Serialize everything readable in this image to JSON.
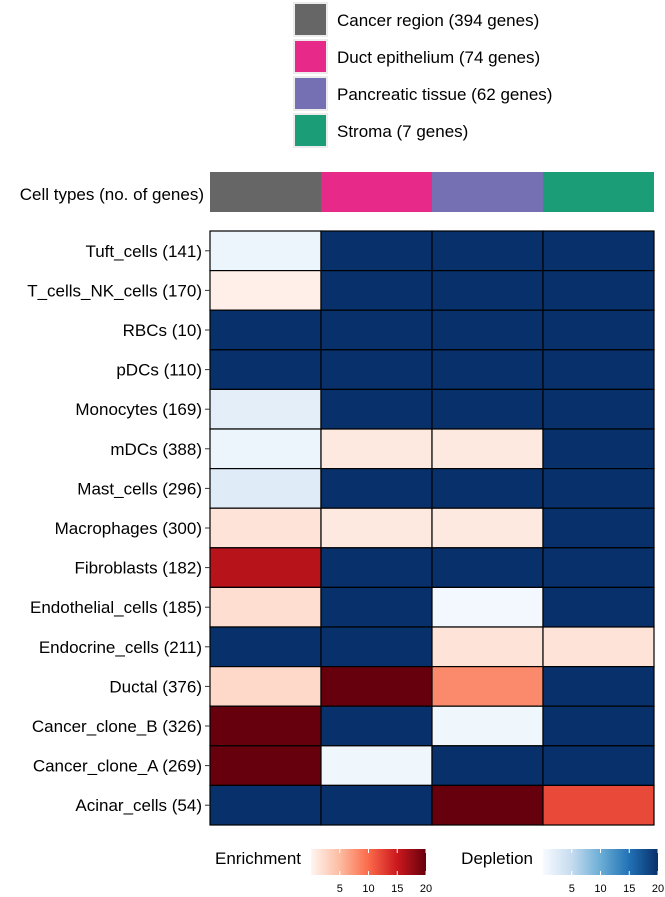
{
  "chart_data": {
    "type": "heatmap",
    "title": "",
    "column_header_label": "Cell types (no. of genes)",
    "columns": [
      {
        "name": "Cancer region",
        "genes": 394,
        "label": "Cancer region (394 genes)",
        "color": "#666666"
      },
      {
        "name": "Duct epithelium",
        "genes": 74,
        "label": "Duct epithelium (74 genes)",
        "color": "#E7298A"
      },
      {
        "name": "Pancreatic tissue",
        "genes": 62,
        "label": "Pancreatic tissue (62 genes)",
        "color": "#7570B3"
      },
      {
        "name": "Stroma",
        "genes": 7,
        "label": "Stroma (7 genes)",
        "color": "#1B9E77"
      }
    ],
    "rows": [
      {
        "label": "Tuft_cells (141)",
        "cells": [
          {
            "kind": "depletion",
            "value": 1
          },
          {
            "kind": "depletion",
            "value": 20
          },
          {
            "kind": "depletion",
            "value": 20
          },
          {
            "kind": "depletion",
            "value": 20
          }
        ]
      },
      {
        "label": "T_cells_NK_cells (170)",
        "cells": [
          {
            "kind": "enrichment",
            "value": 0.5
          },
          {
            "kind": "depletion",
            "value": 20
          },
          {
            "kind": "depletion",
            "value": 20
          },
          {
            "kind": "depletion",
            "value": 20
          }
        ]
      },
      {
        "label": "RBCs (10)",
        "cells": [
          {
            "kind": "depletion",
            "value": 20
          },
          {
            "kind": "depletion",
            "value": 20
          },
          {
            "kind": "depletion",
            "value": 20
          },
          {
            "kind": "depletion",
            "value": 20
          }
        ]
      },
      {
        "label": "pDCs (110)",
        "cells": [
          {
            "kind": "depletion",
            "value": 20
          },
          {
            "kind": "depletion",
            "value": 20
          },
          {
            "kind": "depletion",
            "value": 20
          },
          {
            "kind": "depletion",
            "value": 20
          }
        ]
      },
      {
        "label": "Monocytes (169)",
        "cells": [
          {
            "kind": "depletion",
            "value": 2
          },
          {
            "kind": "depletion",
            "value": 20
          },
          {
            "kind": "depletion",
            "value": 20
          },
          {
            "kind": "depletion",
            "value": 20
          }
        ]
      },
      {
        "label": "mDCs (388)",
        "cells": [
          {
            "kind": "depletion",
            "value": 1
          },
          {
            "kind": "enrichment",
            "value": 1
          },
          {
            "kind": "enrichment",
            "value": 1
          },
          {
            "kind": "depletion",
            "value": 20
          }
        ]
      },
      {
        "label": "Mast_cells (296)",
        "cells": [
          {
            "kind": "depletion",
            "value": 2.5
          },
          {
            "kind": "depletion",
            "value": 20
          },
          {
            "kind": "depletion",
            "value": 20
          },
          {
            "kind": "depletion",
            "value": 20
          }
        ]
      },
      {
        "label": "Macrophages (300)",
        "cells": [
          {
            "kind": "enrichment",
            "value": 1.5
          },
          {
            "kind": "enrichment",
            "value": 1
          },
          {
            "kind": "enrichment",
            "value": 1
          },
          {
            "kind": "depletion",
            "value": 20
          }
        ]
      },
      {
        "label": "Fibroblasts (182)",
        "cells": [
          {
            "kind": "enrichment",
            "value": 16
          },
          {
            "kind": "depletion",
            "value": 20
          },
          {
            "kind": "depletion",
            "value": 20
          },
          {
            "kind": "depletion",
            "value": 20
          }
        ]
      },
      {
        "label": "Endothelial_cells (185)",
        "cells": [
          {
            "kind": "enrichment",
            "value": 2
          },
          {
            "kind": "depletion",
            "value": 20
          },
          {
            "kind": "depletion",
            "value": 0.5
          },
          {
            "kind": "depletion",
            "value": 20
          }
        ]
      },
      {
        "label": "Endocrine_cells (211)",
        "cells": [
          {
            "kind": "depletion",
            "value": 20
          },
          {
            "kind": "depletion",
            "value": 20
          },
          {
            "kind": "enrichment",
            "value": 1.5
          },
          {
            "kind": "enrichment",
            "value": 1.5
          }
        ]
      },
      {
        "label": "Ductal (376)",
        "cells": [
          {
            "kind": "enrichment",
            "value": 2.5
          },
          {
            "kind": "enrichment",
            "value": 20
          },
          {
            "kind": "enrichment",
            "value": 8
          },
          {
            "kind": "depletion",
            "value": 20
          }
        ]
      },
      {
        "label": "Cancer_clone_B (326)",
        "cells": [
          {
            "kind": "enrichment",
            "value": 20
          },
          {
            "kind": "depletion",
            "value": 20
          },
          {
            "kind": "depletion",
            "value": 0.8
          },
          {
            "kind": "depletion",
            "value": 20
          }
        ]
      },
      {
        "label": "Cancer_clone_A (269)",
        "cells": [
          {
            "kind": "enrichment",
            "value": 20
          },
          {
            "kind": "depletion",
            "value": 0.8
          },
          {
            "kind": "depletion",
            "value": 20
          },
          {
            "kind": "depletion",
            "value": 20
          }
        ]
      },
      {
        "label": "Acinar_cells (54)",
        "cells": [
          {
            "kind": "depletion",
            "value": 20
          },
          {
            "kind": "depletion",
            "value": 20
          },
          {
            "kind": "enrichment",
            "value": 20
          },
          {
            "kind": "enrichment",
            "value": 12
          }
        ]
      }
    ],
    "legends": [
      {
        "title": "Enrichment",
        "range": [
          0,
          20
        ],
        "ticks": [
          5,
          10,
          15,
          20
        ],
        "colors": [
          "#FFF5F0",
          "#FCBBA1",
          "#FB6A4A",
          "#CB181D",
          "#67000D"
        ]
      },
      {
        "title": "Depletion",
        "range": [
          0,
          20
        ],
        "ticks": [
          5,
          10,
          15,
          20
        ],
        "colors": [
          "#F7FBFF",
          "#C6DBEF",
          "#6BAED6",
          "#2171B5",
          "#08306B"
        ]
      }
    ]
  }
}
